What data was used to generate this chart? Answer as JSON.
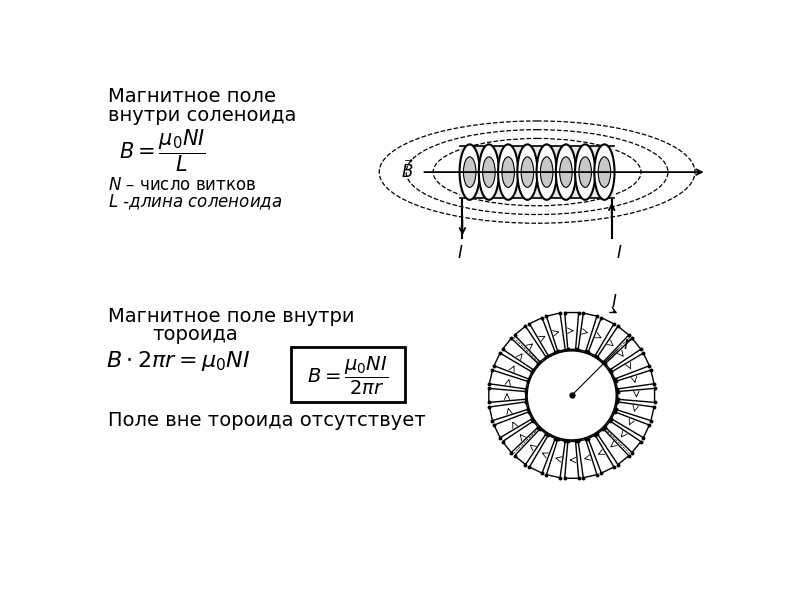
{
  "bg_color": "#ffffff",
  "figsize": [
    8.0,
    6.0
  ],
  "dpi": 100,
  "title1_line1": "Магнитное поле",
  "title1_line2": "внутри соленоида",
  "note1_line1": "N – число витков",
  "note1_line2": "L -длина соленоида",
  "title2_line1": "Магнитное поле внутри",
  "title2_line2": "тороида",
  "note2": "Поле вне тороида отсутствует"
}
